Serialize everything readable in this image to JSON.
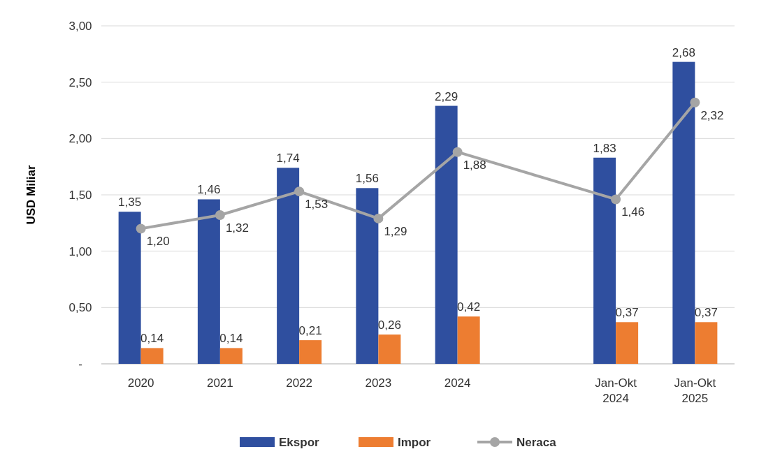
{
  "chart_data": {
    "type": "bar",
    "ylabel": "USD Miliar",
    "categories": [
      "2020",
      "2021",
      "2022",
      "2023",
      "2024",
      null,
      "Jan-Okt 2024",
      "Jan-Okt 2025"
    ],
    "series": [
      {
        "name": "Ekspor",
        "color": "#2f4f9f",
        "values": [
          1.35,
          1.46,
          1.74,
          1.56,
          2.29,
          null,
          1.83,
          2.68
        ],
        "value_labels": [
          "1,35",
          "1,46",
          "1,74",
          "1,56",
          "2,29",
          null,
          "1,83",
          "2,68"
        ]
      },
      {
        "name": "Impor",
        "color": "#ed7d31",
        "values": [
          0.14,
          0.14,
          0.21,
          0.26,
          0.42,
          null,
          0.37,
          0.37
        ],
        "value_labels": [
          "0,14",
          "0,14",
          "0,21",
          "0,26",
          "0,42",
          null,
          "0,37",
          "0,37"
        ]
      },
      {
        "name": "Neraca",
        "type": "line",
        "color": "#a5a5a5",
        "marker": "circle",
        "values": [
          1.2,
          1.32,
          1.53,
          1.29,
          1.88,
          null,
          1.46,
          2.32
        ],
        "value_labels": [
          "1,20",
          "1,32",
          "1,53",
          "1,29",
          "1,88",
          null,
          "1,46",
          "2,32"
        ]
      }
    ],
    "ylim": [
      0,
      3
    ],
    "yticks": [
      {
        "value": 0,
        "label": "-"
      },
      {
        "value": 0.5,
        "label": "0,50"
      },
      {
        "value": 1,
        "label": "1,00"
      },
      {
        "value": 1.5,
        "label": "1,50"
      },
      {
        "value": 2,
        "label": "2,00"
      },
      {
        "value": 2.5,
        "label": "2,50"
      },
      {
        "value": 3,
        "label": "3,00"
      }
    ],
    "grid": "y",
    "legend": "bottom"
  }
}
